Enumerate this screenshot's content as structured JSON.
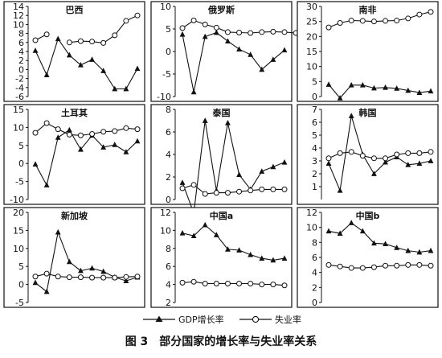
{
  "caption": "图 3　部分国家的增长率与失业率关系",
  "legend": {
    "gdp_label": "GDP增长率",
    "unemp_label": "失业率"
  },
  "chart_data": [
    {
      "type": "line",
      "title": "巴西",
      "ylim": [
        -6,
        14
      ],
      "yticks": [
        -6,
        -4,
        -2,
        0,
        2,
        4,
        6,
        8,
        10,
        12,
        14
      ],
      "series": [
        {
          "name": "GDP增长率",
          "marker": "triangle",
          "start": 0,
          "values": [
            4.2,
            -1.2,
            6.8,
            3.2,
            1.0,
            2.2,
            -0.3,
            -4.3,
            -4.3,
            0.2
          ]
        },
        {
          "name": "失业率",
          "marker": "circle",
          "start": 0,
          "values": [
            6.5,
            7.8
          ],
          "values2": [
            6.0,
            6.3,
            6.2,
            5.9,
            7.6,
            10.8,
            12.0
          ],
          "start2": 3
        }
      ]
    },
    {
      "type": "line",
      "title": "俄罗斯",
      "ylim": [
        -10,
        10
      ],
      "yticks": [
        -10,
        -5,
        0,
        5,
        10
      ],
      "series": [
        {
          "name": "GDP增长率",
          "marker": "triangle",
          "start": 0,
          "values": [
            3.8,
            -9.0,
            3.3,
            4.2,
            2.3,
            0.5,
            -0.7,
            -4.0,
            -1.8,
            0.3
          ]
        },
        {
          "name": "失业率",
          "marker": "circle",
          "start": 0,
          "values": [
            5.2,
            6.9,
            6.0,
            5.3,
            4.3,
            4.2,
            4.1,
            4.3,
            4.4,
            4.3,
            4.1
          ]
        }
      ]
    },
    {
      "type": "line",
      "title": "南非",
      "ylim": [
        0,
        30
      ],
      "yticks": [
        0,
        5,
        10,
        15,
        20,
        25,
        30
      ],
      "series": [
        {
          "name": "GDP增长率",
          "marker": "triangle",
          "start": 0,
          "values": [
            4.0,
            -0.5,
            3.8,
            3.8,
            2.8,
            3.0,
            2.7,
            2.0,
            1.3,
            1.8
          ]
        },
        {
          "name": "失业率",
          "marker": "circle",
          "start": 0,
          "values": [
            23.0,
            24.5,
            25.3,
            25.2,
            25.0,
            25.2,
            25.3,
            26.0,
            27.3,
            28.2
          ]
        }
      ]
    },
    {
      "type": "line",
      "title": "土耳其",
      "ylim": [
        -10,
        15
      ],
      "yticks": [
        -10,
        -5,
        0,
        5,
        10,
        15
      ],
      "series": [
        {
          "name": "GDP增长率",
          "marker": "triangle",
          "start": 0,
          "values": [
            -0.2,
            -6.0,
            7.2,
            9.3,
            3.9,
            7.8,
            4.5,
            5.2,
            3.2,
            6.2
          ]
        },
        {
          "name": "失业率",
          "marker": "circle",
          "start": 0,
          "values": [
            8.5,
            11.2,
            9.5,
            8.0,
            7.8,
            8.2,
            8.8,
            9.0,
            9.8,
            9.5
          ]
        }
      ]
    },
    {
      "type": "line",
      "title": "泰国",
      "ylim": [
        0,
        8
      ],
      "yticks": [
        0,
        2,
        4,
        6,
        8
      ],
      "series": [
        {
          "name": "GDP增长率",
          "marker": "triangle",
          "start": 0,
          "values": [
            1.5,
            -1.2,
            7.0,
            0.8,
            6.8,
            2.2,
            0.9,
            2.5,
            2.9,
            3.3
          ]
        },
        {
          "name": "失业率",
          "marker": "circle",
          "start": 0,
          "values": [
            1.0,
            1.3,
            0.5,
            0.6,
            0.6,
            0.7,
            0.8,
            0.9,
            0.9,
            0.9
          ]
        }
      ]
    },
    {
      "type": "line",
      "title": "韩国",
      "ylim": [
        0,
        7
      ],
      "yticks": [
        1,
        2,
        3,
        4,
        5,
        6,
        7
      ],
      "series": [
        {
          "name": "GDP增长率",
          "marker": "triangle",
          "start": 0,
          "values": [
            2.8,
            0.7,
            6.5,
            3.5,
            2.0,
            2.9,
            3.3,
            2.7,
            2.8,
            3.0
          ]
        },
        {
          "name": "失业率",
          "marker": "circle",
          "start": 0,
          "values": [
            3.2,
            3.6,
            3.7,
            3.4,
            3.2,
            3.2,
            3.5,
            3.6,
            3.6,
            3.7
          ]
        }
      ]
    },
    {
      "type": "line",
      "title": "新加坡",
      "ylim": [
        -5,
        20
      ],
      "yticks": [
        -5,
        0,
        5,
        10,
        15,
        20
      ],
      "series": [
        {
          "name": "GDP增长率",
          "marker": "triangle",
          "start": 0,
          "values": [
            0.5,
            -2.0,
            14.5,
            6.3,
            3.8,
            4.5,
            3.6,
            2.0,
            1.0,
            2.0
          ]
        },
        {
          "name": "失业率",
          "marker": "circle",
          "start": 0,
          "values": [
            2.2,
            3.0,
            2.2,
            2.0,
            2.0,
            1.9,
            1.9,
            1.9,
            2.1,
            2.2
          ]
        }
      ]
    },
    {
      "type": "line",
      "title": "中国a",
      "ylim": [
        2,
        12
      ],
      "yticks": [
        2,
        4,
        6,
        8,
        10,
        12
      ],
      "series": [
        {
          "name": "GDP增长率",
          "marker": "triangle",
          "start": 0,
          "values": [
            9.7,
            9.4,
            10.6,
            9.5,
            7.9,
            7.8,
            7.3,
            6.9,
            6.7,
            6.9
          ]
        },
        {
          "name": "失业率",
          "marker": "circle",
          "start": 0,
          "values": [
            4.2,
            4.3,
            4.1,
            4.1,
            4.1,
            4.1,
            4.1,
            4.0,
            4.0,
            3.9
          ]
        }
      ]
    },
    {
      "type": "line",
      "title": "中国b",
      "ylim": [
        0,
        12
      ],
      "yticks": [
        0,
        2,
        4,
        6,
        8,
        10,
        12
      ],
      "series": [
        {
          "name": "GDP增长率",
          "marker": "triangle",
          "start": 0,
          "values": [
            9.5,
            9.2,
            10.6,
            9.5,
            7.9,
            7.8,
            7.3,
            6.9,
            6.7,
            6.9
          ]
        },
        {
          "name": "失业率",
          "marker": "circle",
          "start": 0,
          "values": [
            5.0,
            4.8,
            4.6,
            4.6,
            4.7,
            4.9,
            4.9,
            5.0,
            5.0,
            4.9
          ]
        }
      ]
    }
  ]
}
